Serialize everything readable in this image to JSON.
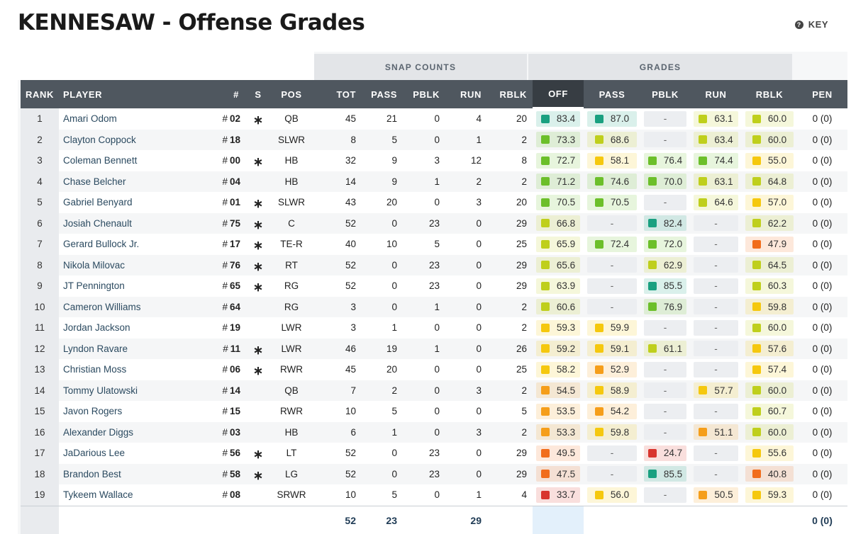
{
  "title": "KENNESAW - Offense Grades",
  "key": {
    "label": "KEY",
    "icon": "question-circle-icon"
  },
  "group_headers": {
    "snap_counts": "SNAP COUNTS",
    "grades": "GRADES"
  },
  "columns": [
    "RANK",
    "PLAYER",
    "#",
    "S",
    "POS",
    "TOT",
    "PASS",
    "PBLK",
    "RUN",
    "RBLK",
    "OFF",
    "PASS",
    "PBLK",
    "RUN",
    "RBLK",
    "PEN"
  ],
  "starter_icon": "asterisk-icon",
  "grade_colors": {
    "dark_green": "#1aa080",
    "green": "#6cbf2a",
    "yellow_green": "#bfcf1c",
    "yellow": "#f5c80e",
    "orange": "#f59e1a",
    "dark_orange": "#f16d1c",
    "red": "#d8352e"
  },
  "players": [
    {
      "rank": "1",
      "name": "Amari Odom",
      "num": "02",
      "starter": true,
      "pos": "QB",
      "tot": "45",
      "pass": "21",
      "pblk": "0",
      "run": "4",
      "rblk": "20",
      "g_off": "83.4",
      "g_pass": "87.0",
      "g_pblk": "-",
      "g_run": "63.1",
      "g_rblk": "60.0",
      "pen": "0 (0)"
    },
    {
      "rank": "2",
      "name": "Clayton Coppock",
      "num": "18",
      "starter": false,
      "pos": "SLWR",
      "tot": "8",
      "pass": "5",
      "pblk": "0",
      "run": "1",
      "rblk": "2",
      "g_off": "73.3",
      "g_pass": "68.6",
      "g_pblk": "-",
      "g_run": "63.4",
      "g_rblk": "60.0",
      "pen": "0 (0)"
    },
    {
      "rank": "3",
      "name": "Coleman Bennett",
      "num": "00",
      "starter": true,
      "pos": "HB",
      "tot": "32",
      "pass": "9",
      "pblk": "3",
      "run": "12",
      "rblk": "8",
      "g_off": "72.7",
      "g_pass": "58.1",
      "g_pblk": "76.4",
      "g_run": "74.4",
      "g_rblk": "55.0",
      "pen": "0 (0)"
    },
    {
      "rank": "4",
      "name": "Chase Belcher",
      "num": "04",
      "starter": false,
      "pos": "HB",
      "tot": "14",
      "pass": "9",
      "pblk": "1",
      "run": "2",
      "rblk": "2",
      "g_off": "71.2",
      "g_pass": "74.6",
      "g_pblk": "70.0",
      "g_run": "63.1",
      "g_rblk": "64.8",
      "pen": "0 (0)"
    },
    {
      "rank": "5",
      "name": "Gabriel Benyard",
      "num": "01",
      "starter": true,
      "pos": "SLWR",
      "tot": "43",
      "pass": "20",
      "pblk": "0",
      "run": "3",
      "rblk": "20",
      "g_off": "70.5",
      "g_pass": "70.5",
      "g_pblk": "-",
      "g_run": "64.6",
      "g_rblk": "57.0",
      "pen": "0 (0)"
    },
    {
      "rank": "6",
      "name": "Josiah Chenault",
      "num": "75",
      "starter": true,
      "pos": "C",
      "tot": "52",
      "pass": "0",
      "pblk": "23",
      "run": "0",
      "rblk": "29",
      "g_off": "66.8",
      "g_pass": "-",
      "g_pblk": "82.4",
      "g_run": "-",
      "g_rblk": "62.2",
      "pen": "0 (0)"
    },
    {
      "rank": "7",
      "name": "Gerard Bullock Jr.",
      "num": "17",
      "starter": true,
      "pos": "TE-R",
      "tot": "40",
      "pass": "10",
      "pblk": "5",
      "run": "0",
      "rblk": "25",
      "g_off": "65.9",
      "g_pass": "72.4",
      "g_pblk": "72.0",
      "g_run": "-",
      "g_rblk": "47.9",
      "pen": "0 (0)"
    },
    {
      "rank": "8",
      "name": "Nikola Milovac",
      "num": "76",
      "starter": true,
      "pos": "RT",
      "tot": "52",
      "pass": "0",
      "pblk": "23",
      "run": "0",
      "rblk": "29",
      "g_off": "65.6",
      "g_pass": "-",
      "g_pblk": "62.9",
      "g_run": "-",
      "g_rblk": "64.5",
      "pen": "0 (0)"
    },
    {
      "rank": "9",
      "name": "JT Pennington",
      "num": "65",
      "starter": true,
      "pos": "RG",
      "tot": "52",
      "pass": "0",
      "pblk": "23",
      "run": "0",
      "rblk": "29",
      "g_off": "63.9",
      "g_pass": "-",
      "g_pblk": "85.5",
      "g_run": "-",
      "g_rblk": "60.3",
      "pen": "0 (0)"
    },
    {
      "rank": "10",
      "name": "Cameron Williams",
      "num": "64",
      "starter": false,
      "pos": "RG",
      "tot": "3",
      "pass": "0",
      "pblk": "1",
      "run": "0",
      "rblk": "2",
      "g_off": "60.6",
      "g_pass": "-",
      "g_pblk": "76.9",
      "g_run": "-",
      "g_rblk": "59.8",
      "pen": "0 (0)"
    },
    {
      "rank": "11",
      "name": "Jordan Jackson",
      "num": "19",
      "starter": false,
      "pos": "LWR",
      "tot": "3",
      "pass": "1",
      "pblk": "0",
      "run": "0",
      "rblk": "2",
      "g_off": "59.3",
      "g_pass": "59.9",
      "g_pblk": "-",
      "g_run": "-",
      "g_rblk": "60.0",
      "pen": "0 (0)"
    },
    {
      "rank": "12",
      "name": "Lyndon Ravare",
      "num": "11",
      "starter": true,
      "pos": "LWR",
      "tot": "46",
      "pass": "19",
      "pblk": "1",
      "run": "0",
      "rblk": "26",
      "g_off": "59.2",
      "g_pass": "59.1",
      "g_pblk": "61.1",
      "g_run": "-",
      "g_rblk": "57.6",
      "pen": "0 (0)"
    },
    {
      "rank": "13",
      "name": "Christian Moss",
      "num": "06",
      "starter": true,
      "pos": "RWR",
      "tot": "45",
      "pass": "20",
      "pblk": "0",
      "run": "0",
      "rblk": "25",
      "g_off": "58.2",
      "g_pass": "52.9",
      "g_pblk": "-",
      "g_run": "-",
      "g_rblk": "57.4",
      "pen": "0 (0)"
    },
    {
      "rank": "14",
      "name": "Tommy Ulatowski",
      "num": "14",
      "starter": false,
      "pos": "QB",
      "tot": "7",
      "pass": "2",
      "pblk": "0",
      "run": "3",
      "rblk": "2",
      "g_off": "54.5",
      "g_pass": "58.9",
      "g_pblk": "-",
      "g_run": "57.7",
      "g_rblk": "60.0",
      "pen": "0 (0)"
    },
    {
      "rank": "15",
      "name": "Javon Rogers",
      "num": "15",
      "starter": false,
      "pos": "RWR",
      "tot": "10",
      "pass": "5",
      "pblk": "0",
      "run": "0",
      "rblk": "5",
      "g_off": "53.5",
      "g_pass": "54.2",
      "g_pblk": "-",
      "g_run": "-",
      "g_rblk": "60.7",
      "pen": "0 (0)"
    },
    {
      "rank": "16",
      "name": "Alexander Diggs",
      "num": "03",
      "starter": false,
      "pos": "HB",
      "tot": "6",
      "pass": "1",
      "pblk": "0",
      "run": "3",
      "rblk": "2",
      "g_off": "53.3",
      "g_pass": "59.8",
      "g_pblk": "-",
      "g_run": "51.1",
      "g_rblk": "60.0",
      "pen": "0 (0)"
    },
    {
      "rank": "17",
      "name": "JaDarious Lee",
      "num": "56",
      "starter": true,
      "pos": "LT",
      "tot": "52",
      "pass": "0",
      "pblk": "23",
      "run": "0",
      "rblk": "29",
      "g_off": "49.5",
      "g_pass": "-",
      "g_pblk": "24.7",
      "g_run": "-",
      "g_rblk": "55.6",
      "pen": "0 (0)"
    },
    {
      "rank": "18",
      "name": "Brandon Best",
      "num": "58",
      "starter": true,
      "pos": "LG",
      "tot": "52",
      "pass": "0",
      "pblk": "23",
      "run": "0",
      "rblk": "29",
      "g_off": "47.5",
      "g_pass": "-",
      "g_pblk": "85.5",
      "g_run": "-",
      "g_rblk": "40.8",
      "pen": "0 (0)"
    },
    {
      "rank": "19",
      "name": "Tykeem Wallace",
      "num": "08",
      "starter": false,
      "pos": "SRWR",
      "tot": "10",
      "pass": "5",
      "pblk": "0",
      "run": "1",
      "rblk": "4",
      "g_off": "33.7",
      "g_pass": "56.0",
      "g_pblk": "-",
      "g_run": "50.5",
      "g_rblk": "59.3",
      "pen": "0 (0)"
    }
  ],
  "totals": {
    "tot": "52",
    "pass": "23",
    "run": "29",
    "pen": "0 (0)"
  }
}
